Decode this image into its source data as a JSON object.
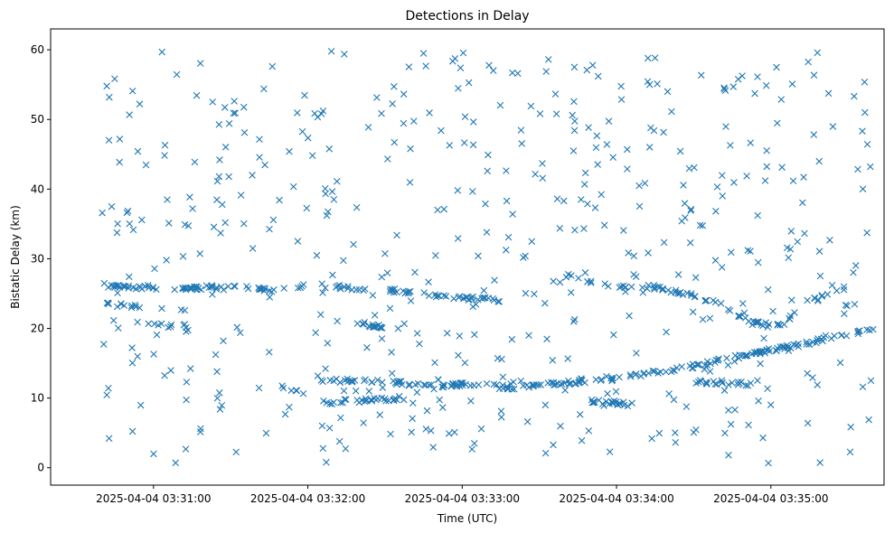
{
  "chart_data": {
    "type": "scatter",
    "title": "Detections in Delay",
    "xlabel": "Time (UTC)",
    "ylabel": "Bistatic Delay (km)",
    "x_format": "time",
    "xlim": [
      "2025-04-04T03:30:20",
      "2025-04-04T03:35:44"
    ],
    "ylim": [
      -2.5,
      63.0
    ],
    "xticks": [
      {
        "t": "2025-04-04T03:31:00",
        "label": "2025-04-04 03:31:00"
      },
      {
        "t": "2025-04-04T03:32:00",
        "label": "2025-04-04 03:32:00"
      },
      {
        "t": "2025-04-04T03:33:00",
        "label": "2025-04-04 03:33:00"
      },
      {
        "t": "2025-04-04T03:34:00",
        "label": "2025-04-04 03:34:00"
      },
      {
        "t": "2025-04-04T03:35:00",
        "label": "2025-04-04 03:35:00"
      }
    ],
    "yticks": [
      0,
      10,
      20,
      30,
      40,
      50,
      60
    ],
    "grid": false,
    "marker": "x",
    "color": "#1f77b4",
    "series": [
      {
        "x_start": "2025-04-04T03:30:40",
        "x_end": "2025-04-04T03:35:40",
        "tracks": [
          {
            "points": [
              [
                "2025-04-04T03:30:40",
                26.2
              ],
              [
                "2025-04-04T03:31:10",
                25.7
              ],
              [
                "2025-04-04T03:31:30",
                26.0
              ],
              [
                "2025-04-04T03:31:50",
                25.4
              ],
              [
                "2025-04-04T03:32:00",
                26.3
              ],
              [
                "2025-04-04T03:32:30",
                25.5
              ],
              [
                "2025-04-04T03:32:40",
                25.1
              ],
              [
                "2025-04-04T03:32:50",
                24.6
              ],
              [
                "2025-04-04T03:33:15",
                24.0
              ]
            ]
          },
          {
            "points": [
              [
                "2025-04-04T03:33:40",
                27.7
              ],
              [
                "2025-04-04T03:33:55",
                26.2
              ],
              [
                "2025-04-04T03:34:15",
                25.9
              ],
              [
                "2025-04-04T03:34:30",
                24.8
              ],
              [
                "2025-04-04T03:34:40",
                23.5
              ],
              [
                "2025-04-04T03:34:52",
                20.8
              ],
              [
                "2025-04-04T03:35:05",
                20.4
              ],
              [
                "2025-04-04T03:35:12",
                23.5
              ],
              [
                "2025-04-04T03:35:30",
                25.9
              ]
            ]
          },
          {
            "points": [
              [
                "2025-04-04T03:30:40",
                23.5
              ],
              [
                "2025-04-04T03:30:55",
                23.0
              ]
            ]
          },
          {
            "points": [
              [
                "2025-04-04T03:30:58",
                20.9
              ],
              [
                "2025-04-04T03:31:15",
                20.2
              ]
            ]
          },
          {
            "points": [
              [
                "2025-04-04T03:31:50",
                11.5
              ],
              [
                "2025-04-04T03:32:00",
                10.5
              ]
            ]
          },
          {
            "points": [
              [
                "2025-04-04T03:32:05",
                12.6
              ],
              [
                "2025-04-04T03:32:25",
                12.4
              ],
              [
                "2025-04-04T03:32:50",
                11.8
              ],
              [
                "2025-04-04T03:33:05",
                12.0
              ],
              [
                "2025-04-04T03:33:20",
                11.4
              ]
            ]
          },
          {
            "points": [
              [
                "2025-04-04T03:32:05",
                9.3
              ],
              [
                "2025-04-04T03:32:40",
                10.1
              ]
            ]
          },
          {
            "points": [
              [
                "2025-04-04T03:32:15",
                20.9
              ],
              [
                "2025-04-04T03:32:30",
                20.3
              ]
            ]
          },
          {
            "points": [
              [
                "2025-04-04T03:33:20",
                11.5
              ],
              [
                "2025-04-04T03:34:00",
                12.8
              ],
              [
                "2025-04-04T03:34:30",
                14.6
              ],
              [
                "2025-04-04T03:35:00",
                16.9
              ],
              [
                "2025-04-04T03:35:40",
                19.8
              ]
            ]
          },
          {
            "points": [
              [
                "2025-04-04T03:33:50",
                9.6
              ],
              [
                "2025-04-04T03:34:05",
                9.1
              ]
            ]
          },
          {
            "points": [
              [
                "2025-04-04T03:34:30",
                12.4
              ],
              [
                "2025-04-04T03:34:55",
                11.9
              ]
            ]
          }
        ],
        "scatter_seed": 7,
        "scatter_count": 520,
        "track_count": 520
      }
    ]
  }
}
